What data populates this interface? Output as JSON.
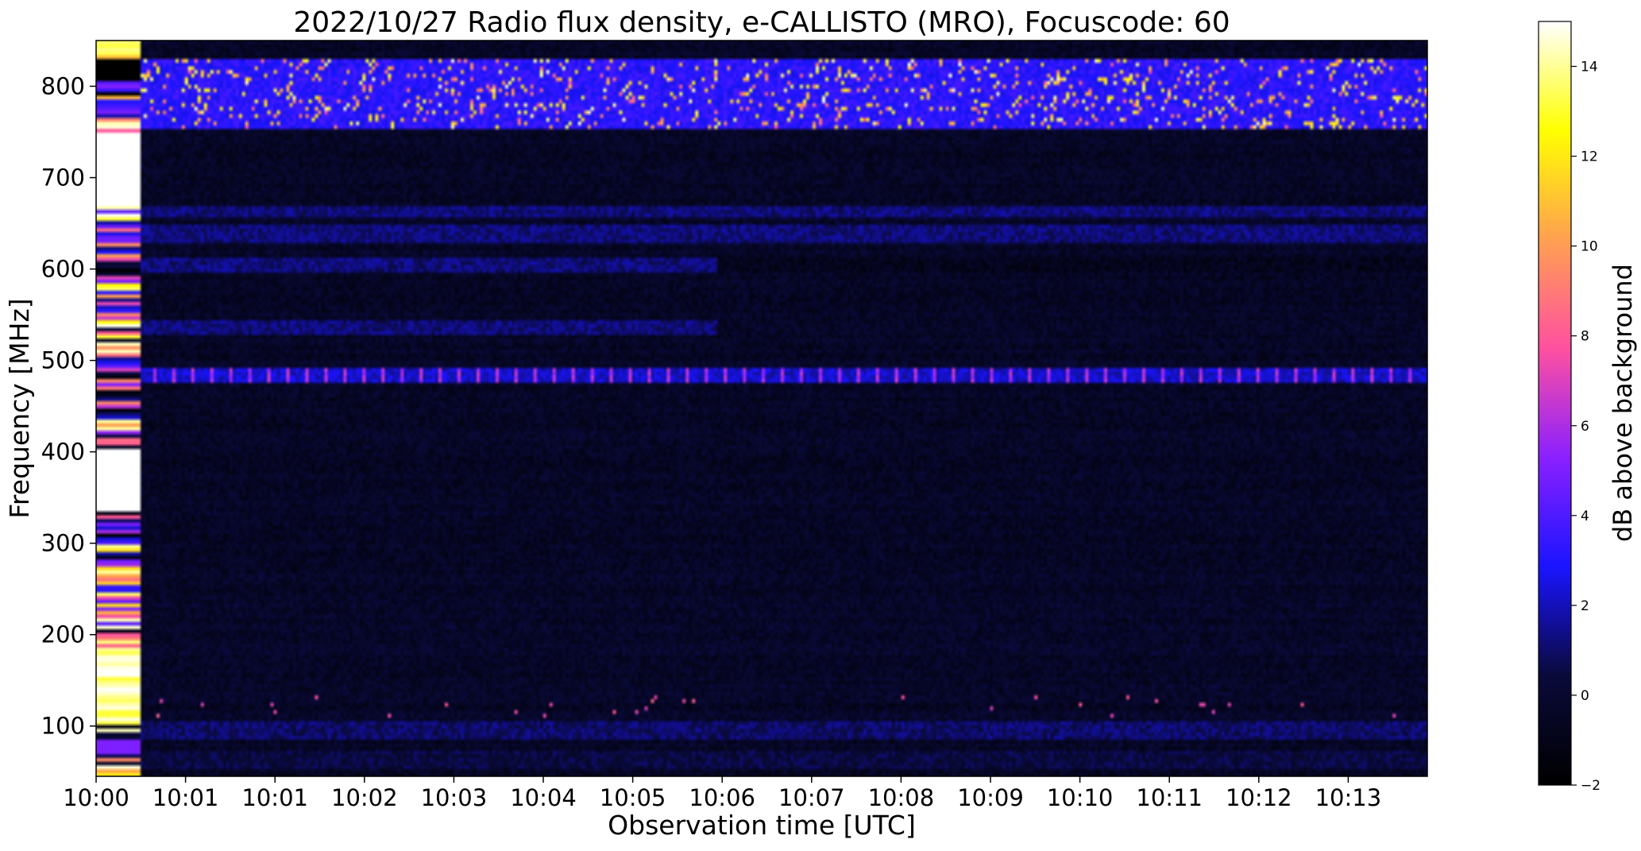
{
  "chart_data": {
    "type": "heatmap",
    "title": "2022/10/27  Radio flux density, e-CALLISTO (MRO), Focuscode: 60",
    "xlabel": "Observation time [UTC]",
    "ylabel": "Frequency [MHz]",
    "x_tick_labels": [
      "10:00",
      "10:01",
      "10:01",
      "10:02",
      "10:03",
      "10:04",
      "10:05",
      "10:06",
      "10:07",
      "10:08",
      "10:09",
      "10:10",
      "10:11",
      "10:12",
      "10:13"
    ],
    "y_ticks": [
      100,
      200,
      300,
      400,
      500,
      600,
      700,
      800
    ],
    "ylim": [
      45,
      850
    ],
    "colorbar": {
      "label": "dB above background",
      "ticks": [
        -2,
        0,
        2,
        4,
        6,
        8,
        10,
        12,
        14
      ],
      "range": [
        -2,
        15
      ],
      "colormap": [
        "#000000",
        "#0a0a3a",
        "#1a14ff",
        "#8a20ff",
        "#ff50a0",
        "#ffa050",
        "#ffff00",
        "#ffffff"
      ]
    },
    "bands": [
      {
        "f_min": 755,
        "f_max": 830,
        "level": 4,
        "note": "bursty RFI"
      },
      {
        "f_min": 655,
        "f_max": 670,
        "level": 2
      },
      {
        "f_min": 630,
        "f_max": 650,
        "level": 2
      },
      {
        "f_min": 595,
        "f_max": 612,
        "level": 2
      },
      {
        "f_min": 530,
        "f_max": 545,
        "level": 2
      },
      {
        "f_min": 475,
        "f_max": 490,
        "level": 3,
        "note": "intermittent"
      },
      {
        "f_min": 85,
        "f_max": 105,
        "level": 1.8
      },
      {
        "f_min": 55,
        "f_max": 75,
        "level": 1.2
      }
    ]
  }
}
